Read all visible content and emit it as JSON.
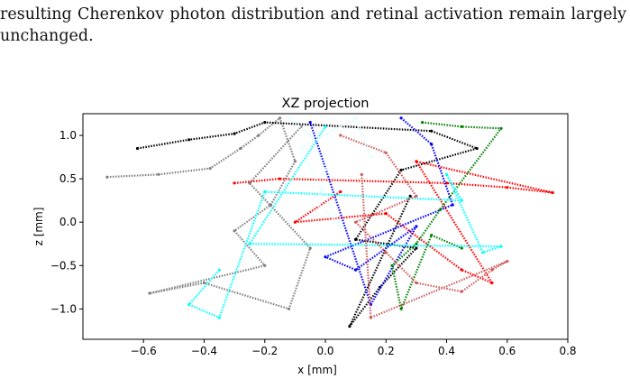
{
  "text": {
    "line1": "resulting Cherenkov photon distribution and retinal activation remain largely",
    "line2": "unchanged."
  },
  "chart_data": {
    "type": "scatter",
    "title": "XZ projection",
    "xlabel": "x [mm]",
    "ylabel": "z [mm]",
    "xlim": [
      -0.8,
      0.8
    ],
    "ylim": [
      -1.35,
      1.25
    ],
    "xticks": [
      "−0.6",
      "−0.4",
      "−0.2",
      "0.0",
      "0.2",
      "0.4",
      "0.6",
      "0.8"
    ],
    "xtick_values": [
      -0.6,
      -0.4,
      -0.2,
      0.0,
      0.2,
      0.4,
      0.6,
      0.8
    ],
    "yticks": [
      "−1.0",
      "−0.5",
      "0.0",
      "0.5",
      "1.0"
    ],
    "ytick_values": [
      -1.0,
      -0.5,
      0.0,
      0.5,
      1.0
    ],
    "grid": false,
    "series": [
      {
        "color": "#808080",
        "points": [
          [
            -0.72,
            0.52
          ],
          [
            -0.55,
            0.55
          ],
          [
            -0.38,
            0.62
          ],
          [
            -0.28,
            0.85
          ],
          [
            -0.22,
            1.0
          ],
          [
            -0.15,
            1.2
          ],
          [
            -0.1,
            0.7
          ],
          [
            -0.18,
            0.2
          ],
          [
            -0.3,
            -0.1
          ],
          [
            -0.2,
            -0.5
          ],
          [
            -0.58,
            -0.82
          ],
          [
            -0.4,
            -0.7
          ],
          [
            -0.12,
            -1.0
          ],
          [
            -0.05,
            -0.3
          ],
          [
            -0.25,
            0.45
          ],
          [
            -0.08,
            1.1
          ]
        ]
      },
      {
        "color": "#000000",
        "points": [
          [
            -0.62,
            0.85
          ],
          [
            -0.45,
            0.95
          ],
          [
            -0.3,
            1.02
          ],
          [
            -0.2,
            1.15
          ],
          [
            0.35,
            1.05
          ],
          [
            0.5,
            0.85
          ],
          [
            0.25,
            0.6
          ],
          [
            0.1,
            -0.2
          ],
          [
            0.3,
            -0.3
          ],
          [
            0.18,
            -0.75
          ],
          [
            0.08,
            -1.2
          ],
          [
            0.28,
            0.3
          ]
        ]
      },
      {
        "color": "#ff0000",
        "points": [
          [
            -0.3,
            0.45
          ],
          [
            -0.15,
            0.5
          ],
          [
            0.4,
            0.45
          ],
          [
            0.6,
            0.4
          ],
          [
            0.75,
            0.34
          ],
          [
            0.3,
            0.7
          ],
          [
            0.55,
            -0.7
          ],
          [
            0.45,
            -0.55
          ],
          [
            0.2,
            0.1
          ],
          [
            -0.1,
            0.0
          ],
          [
            0.05,
            0.35
          ]
        ]
      },
      {
        "color": "#0000ff",
        "points": [
          [
            0.25,
            1.2
          ],
          [
            0.35,
            0.9
          ],
          [
            0.42,
            0.2
          ],
          [
            0.0,
            -0.4
          ],
          [
            0.1,
            -0.55
          ],
          [
            0.3,
            -0.05
          ],
          [
            0.15,
            -0.95
          ],
          [
            -0.05,
            1.15
          ]
        ]
      },
      {
        "color": "#008000",
        "points": [
          [
            0.32,
            1.15
          ],
          [
            0.45,
            1.1
          ],
          [
            0.58,
            1.08
          ],
          [
            0.38,
            0.15
          ],
          [
            0.3,
            -0.25
          ],
          [
            0.22,
            -0.5
          ],
          [
            0.25,
            -1.0
          ],
          [
            0.35,
            -0.15
          ],
          [
            0.45,
            -0.3
          ]
        ]
      },
      {
        "color": "#00ffff",
        "points": [
          [
            -0.35,
            -0.55
          ],
          [
            -0.45,
            -0.95
          ],
          [
            -0.35,
            -1.1
          ],
          [
            -0.2,
            0.35
          ],
          [
            0.45,
            0.25
          ],
          [
            0.4,
            0.55
          ],
          [
            0.52,
            -0.35
          ],
          [
            0.58,
            -0.28
          ],
          [
            -0.25,
            -0.25
          ],
          [
            0.0,
            1.1
          ]
        ]
      },
      {
        "color": "#cd5c5c",
        "points": [
          [
            0.05,
            1.0
          ],
          [
            0.2,
            0.8
          ],
          [
            0.3,
            0.3
          ],
          [
            0.1,
            0.0
          ],
          [
            0.2,
            -0.35
          ],
          [
            0.3,
            -0.7
          ],
          [
            0.45,
            -0.8
          ],
          [
            0.55,
            -0.55
          ],
          [
            0.6,
            -0.45
          ],
          [
            0.15,
            -1.1
          ],
          [
            0.12,
            0.55
          ]
        ]
      },
      {
        "color": "#e0ffff",
        "points": [
          [
            -0.12,
            1.2
          ],
          [
            -0.05,
            1.0
          ],
          [
            0.0,
            0.6
          ],
          [
            -0.02,
            0.2
          ],
          [
            0.05,
            -0.05
          ],
          [
            -0.08,
            0.85
          ],
          [
            0.1,
            1.2
          ],
          [
            0.15,
            0.75
          ]
        ]
      }
    ]
  }
}
